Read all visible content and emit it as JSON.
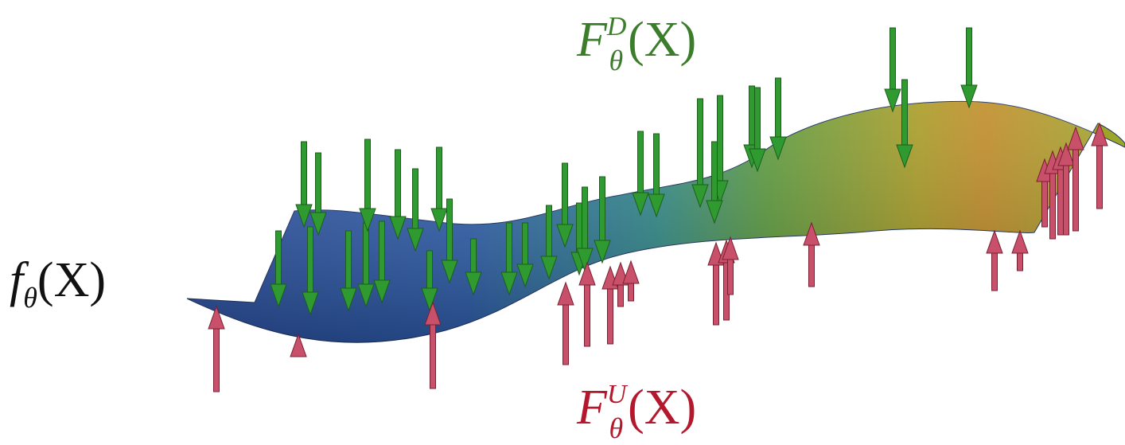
{
  "labels": {
    "surface": {
      "base": "f",
      "sub": "θ",
      "args": "(X)"
    },
    "downward": {
      "base": "F",
      "sup": "D",
      "sub": "θ",
      "args": "(X)"
    },
    "upward": {
      "base": "F",
      "sup": "U",
      "sub": "θ",
      "args": "(X)"
    }
  }
}
